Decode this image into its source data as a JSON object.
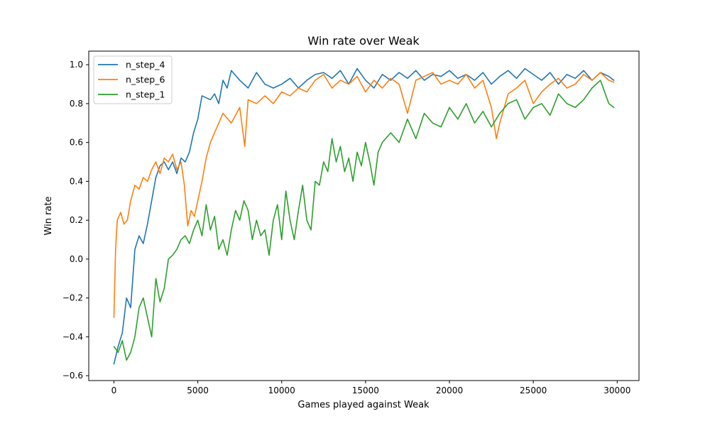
{
  "chart_data": {
    "type": "line",
    "title": "Win rate over Weak",
    "xlabel": "Games played against Weak",
    "ylabel": "Win rate",
    "xlim": [
      -1500,
      31300
    ],
    "ylim": [
      -0.625,
      1.07
    ],
    "xticks": [
      0,
      5000,
      10000,
      15000,
      20000,
      25000,
      30000
    ],
    "yticks": [
      -0.6,
      -0.4,
      -0.2,
      0.0,
      0.2,
      0.4,
      0.6,
      0.8,
      1.0
    ],
    "xtick_labels": [
      "0",
      "5000",
      "10000",
      "15000",
      "20000",
      "25000",
      "30000"
    ],
    "ytick_labels": [
      "−0.6",
      "−0.4",
      "−0.2",
      "0.0",
      "0.2",
      "0.4",
      "0.6",
      "0.8",
      "1.0"
    ],
    "grid": false,
    "legend_position": "top-left",
    "series": [
      {
        "name": "n_step_4",
        "color": "#1f77b4",
        "x": [
          0,
          250,
          500,
          750,
          1000,
          1250,
          1500,
          1750,
          2000,
          2250,
          2500,
          2750,
          3000,
          3250,
          3500,
          3750,
          4000,
          4250,
          4500,
          4750,
          5000,
          5250,
          5500,
          5750,
          6000,
          6250,
          6500,
          6750,
          7000,
          7500,
          8000,
          8500,
          9000,
          9500,
          10000,
          10500,
          11000,
          11500,
          12000,
          12500,
          13000,
          13500,
          14000,
          14500,
          15000,
          15500,
          16000,
          16500,
          17000,
          17500,
          18000,
          18500,
          19000,
          19500,
          20000,
          20500,
          21000,
          21500,
          22000,
          22500,
          23000,
          23500,
          24000,
          24500,
          25000,
          25500,
          26000,
          26500,
          27000,
          27500,
          28000,
          28500,
          29000,
          29500,
          29800
        ],
        "values": [
          -0.54,
          -0.45,
          -0.38,
          -0.2,
          -0.25,
          0.05,
          0.12,
          0.08,
          0.18,
          0.3,
          0.42,
          0.48,
          0.5,
          0.46,
          0.5,
          0.44,
          0.52,
          0.5,
          0.55,
          0.65,
          0.72,
          0.84,
          0.83,
          0.82,
          0.85,
          0.8,
          0.92,
          0.88,
          0.97,
          0.92,
          0.88,
          0.96,
          0.9,
          0.88,
          0.9,
          0.93,
          0.88,
          0.92,
          0.95,
          0.96,
          0.93,
          0.97,
          0.9,
          0.98,
          0.92,
          0.88,
          0.95,
          0.92,
          0.96,
          0.93,
          0.97,
          0.92,
          0.95,
          0.94,
          0.97,
          0.93,
          0.95,
          0.92,
          0.96,
          0.9,
          0.94,
          0.97,
          0.93,
          0.98,
          0.95,
          0.92,
          0.96,
          0.9,
          0.95,
          0.93,
          0.97,
          0.92,
          0.96,
          0.94,
          0.92
        ]
      },
      {
        "name": "n_step_6",
        "color": "#ff7f0e",
        "x": [
          0,
          100,
          200,
          400,
          600,
          800,
          1000,
          1250,
          1500,
          1750,
          2000,
          2250,
          2500,
          2750,
          3000,
          3250,
          3500,
          3750,
          4000,
          4200,
          4400,
          4600,
          4800,
          5000,
          5250,
          5500,
          5750,
          6000,
          6500,
          7000,
          7500,
          7800,
          8000,
          8500,
          9000,
          9500,
          10000,
          10500,
          11000,
          11500,
          12000,
          12500,
          13000,
          13500,
          14000,
          14500,
          15000,
          15500,
          16000,
          16500,
          17000,
          17500,
          18000,
          18500,
          19000,
          19500,
          20000,
          20500,
          21000,
          21500,
          22000,
          22500,
          22800,
          23000,
          23500,
          24000,
          24500,
          25000,
          25500,
          26000,
          26500,
          27000,
          27500,
          28000,
          28500,
          29000,
          29500,
          29800
        ],
        "values": [
          -0.3,
          0.05,
          0.2,
          0.24,
          0.18,
          0.2,
          0.3,
          0.38,
          0.36,
          0.42,
          0.4,
          0.46,
          0.5,
          0.44,
          0.52,
          0.5,
          0.54,
          0.46,
          0.5,
          0.38,
          0.17,
          0.25,
          0.22,
          0.3,
          0.4,
          0.52,
          0.6,
          0.65,
          0.75,
          0.7,
          0.78,
          0.58,
          0.82,
          0.8,
          0.84,
          0.8,
          0.86,
          0.84,
          0.88,
          0.86,
          0.92,
          0.95,
          0.88,
          0.92,
          0.9,
          0.94,
          0.86,
          0.92,
          0.88,
          0.93,
          0.9,
          0.75,
          0.92,
          0.94,
          0.96,
          0.9,
          0.92,
          0.9,
          0.95,
          0.88,
          0.92,
          0.78,
          0.62,
          0.7,
          0.85,
          0.88,
          0.92,
          0.8,
          0.86,
          0.9,
          0.93,
          0.88,
          0.9,
          0.95,
          0.92,
          0.96,
          0.92,
          0.91
        ]
      },
      {
        "name": "n_step_1",
        "color": "#2ca02c",
        "x": [
          0,
          250,
          500,
          750,
          1000,
          1250,
          1500,
          1750,
          2000,
          2250,
          2500,
          2750,
          3000,
          3250,
          3500,
          3750,
          4000,
          4250,
          4500,
          4750,
          5000,
          5250,
          5500,
          5750,
          6000,
          6250,
          6500,
          6750,
          7000,
          7250,
          7500,
          7750,
          8000,
          8250,
          8500,
          8750,
          9000,
          9250,
          9500,
          9750,
          10000,
          10250,
          10500,
          10750,
          11000,
          11250,
          11500,
          11750,
          12000,
          12250,
          12500,
          12750,
          13000,
          13250,
          13500,
          13750,
          14000,
          14250,
          14500,
          14750,
          15000,
          15250,
          15500,
          15750,
          16000,
          16500,
          17000,
          17500,
          18000,
          18500,
          19000,
          19500,
          20000,
          20500,
          21000,
          21500,
          22000,
          22500,
          23000,
          23500,
          24000,
          24500,
          25000,
          25500,
          26000,
          26500,
          27000,
          27500,
          28000,
          28500,
          29000,
          29500,
          29800
        ],
        "values": [
          -0.45,
          -0.48,
          -0.42,
          -0.52,
          -0.48,
          -0.4,
          -0.25,
          -0.2,
          -0.3,
          -0.4,
          -0.1,
          -0.22,
          -0.15,
          0.0,
          0.02,
          0.05,
          0.1,
          0.12,
          0.08,
          0.15,
          0.2,
          0.12,
          0.28,
          0.15,
          0.22,
          0.05,
          0.1,
          0.02,
          0.15,
          0.25,
          0.2,
          0.3,
          0.25,
          0.1,
          0.2,
          0.12,
          0.15,
          0.02,
          0.2,
          0.28,
          0.1,
          0.35,
          0.2,
          0.1,
          0.25,
          0.38,
          0.2,
          0.15,
          0.4,
          0.38,
          0.5,
          0.45,
          0.62,
          0.5,
          0.58,
          0.45,
          0.52,
          0.4,
          0.55,
          0.48,
          0.6,
          0.5,
          0.38,
          0.55,
          0.6,
          0.65,
          0.6,
          0.72,
          0.62,
          0.75,
          0.7,
          0.68,
          0.78,
          0.72,
          0.8,
          0.7,
          0.76,
          0.68,
          0.75,
          0.8,
          0.82,
          0.72,
          0.78,
          0.8,
          0.74,
          0.85,
          0.8,
          0.78,
          0.82,
          0.88,
          0.92,
          0.8,
          0.78
        ]
      }
    ]
  }
}
